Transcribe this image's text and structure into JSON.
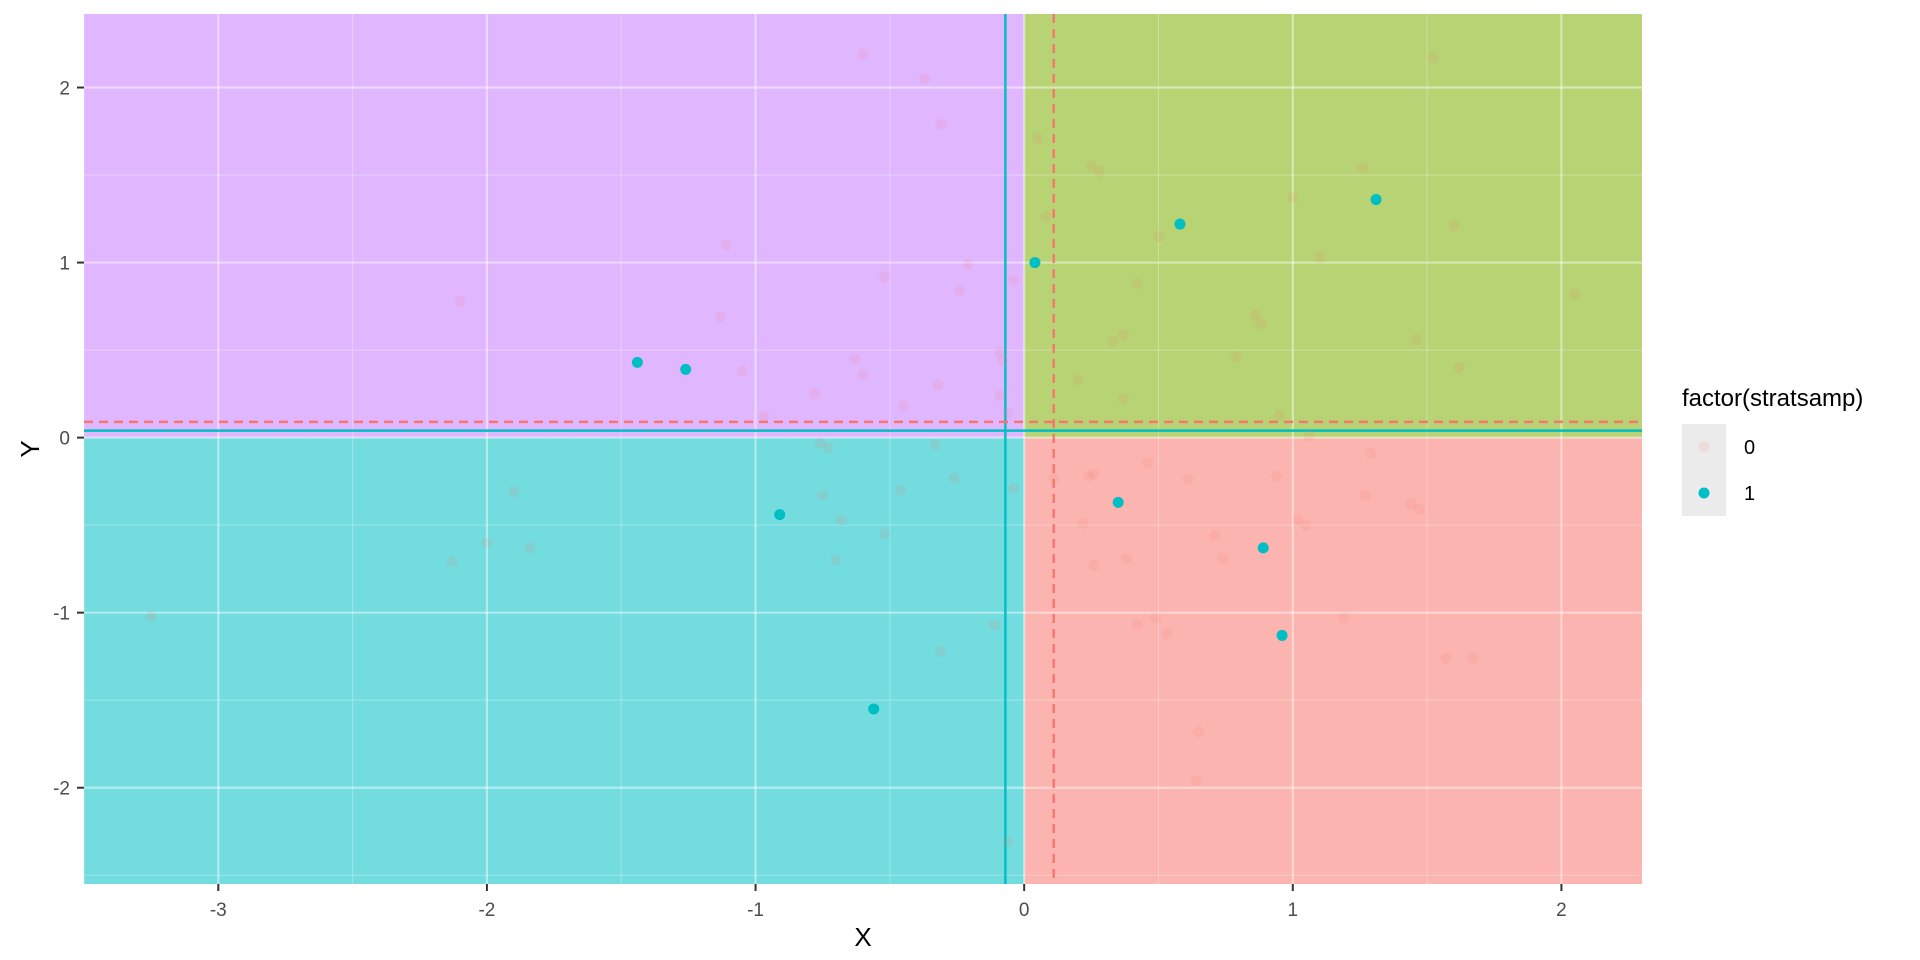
{
  "chart_data": {
    "type": "scatter",
    "xlabel": "X",
    "ylabel": "Y",
    "xlim": [
      -3.5,
      2.3
    ],
    "ylim": [
      -2.55,
      2.42
    ],
    "x_ticks": [
      -3,
      -2,
      -1,
      0,
      1,
      2
    ],
    "y_ticks": [
      -2,
      -1,
      0,
      1,
      2
    ],
    "x_tick_labels": [
      "-3",
      "-2",
      "-1",
      "0",
      "1",
      "2"
    ],
    "y_tick_labels": [
      "-2",
      "-1",
      "0",
      "1",
      "2"
    ],
    "grid": true,
    "quadrant_split": {
      "x": 0,
      "y": 0
    },
    "quadrants": [
      {
        "region": "x<0,y>0",
        "color": "#C77CFF"
      },
      {
        "region": "x>0,y>0",
        "color": "#7CAE00"
      },
      {
        "region": "x<0,y<0",
        "color": "#00BFC4"
      },
      {
        "region": "x>0,y<0",
        "color": "#F8766D"
      }
    ],
    "reference_lines": [
      {
        "orientation": "vertical",
        "value": -0.07,
        "style": "solid",
        "color": "#00BFC4"
      },
      {
        "orientation": "horizontal",
        "value": 0.04,
        "style": "solid",
        "color": "#00BFC4"
      },
      {
        "orientation": "vertical",
        "value": 0.11,
        "style": "dashed",
        "color": "#F8766D"
      },
      {
        "orientation": "horizontal",
        "value": 0.09,
        "style": "dashed",
        "color": "#F8766D"
      }
    ],
    "legend": {
      "title": "factor(stratsamp)",
      "position": "right",
      "entries": [
        {
          "label": "0",
          "color": "#F8766D",
          "faded": true
        },
        {
          "label": "1",
          "color": "#00BFC4",
          "faded": false
        }
      ]
    },
    "series": [
      {
        "name": "0",
        "color": "#F8766D",
        "opacity": 0.12,
        "points": [
          [
            -0.6,
            2.19
          ],
          [
            -0.37,
            2.05
          ],
          [
            -0.31,
            1.79
          ],
          [
            -1.11,
            1.1
          ],
          [
            -0.21,
            0.99
          ],
          [
            -2.1,
            0.78
          ],
          [
            -0.52,
            0.92
          ],
          [
            -0.24,
            0.84
          ],
          [
            -1.13,
            0.69
          ],
          [
            -0.04,
            0.9
          ],
          [
            -0.63,
            0.45
          ],
          [
            -0.6,
            0.36
          ],
          [
            -1.05,
            0.38
          ],
          [
            -0.78,
            0.25
          ],
          [
            -0.09,
            0.49
          ],
          [
            -0.08,
            0.44
          ],
          [
            -0.45,
            0.18
          ],
          [
            -0.32,
            0.3
          ],
          [
            -0.97,
            0.12
          ],
          [
            -0.09,
            0.24
          ],
          [
            -0.06,
            0.14
          ],
          [
            -0.76,
            -0.03
          ],
          [
            -0.73,
            -0.06
          ],
          [
            -0.33,
            -0.04
          ],
          [
            -0.26,
            -0.23
          ],
          [
            -0.75,
            -0.33
          ],
          [
            -0.46,
            -0.3
          ],
          [
            -0.04,
            -0.29
          ],
          [
            -1.9,
            -0.31
          ],
          [
            -0.68,
            -0.47
          ],
          [
            -0.52,
            -0.55
          ],
          [
            -2.0,
            -0.6
          ],
          [
            -1.84,
            -0.63
          ],
          [
            -0.7,
            -0.7
          ],
          [
            -2.13,
            -0.71
          ],
          [
            -3.25,
            -1.02
          ],
          [
            -0.11,
            -1.07
          ],
          [
            -0.31,
            -1.22
          ],
          [
            -0.06,
            -2.31
          ],
          [
            1.52,
            2.17
          ],
          [
            0.05,
            1.71
          ],
          [
            0.25,
            1.55
          ],
          [
            0.28,
            1.52
          ],
          [
            1.26,
            1.54
          ],
          [
            1.0,
            1.37
          ],
          [
            0.08,
            1.26
          ],
          [
            1.6,
            1.21
          ],
          [
            0.5,
            1.15
          ],
          [
            1.1,
            1.03
          ],
          [
            0.42,
            0.88
          ],
          [
            2.05,
            0.82
          ],
          [
            0.86,
            0.7
          ],
          [
            0.88,
            0.65
          ],
          [
            0.37,
            0.59
          ],
          [
            0.33,
            0.55
          ],
          [
            1.46,
            0.56
          ],
          [
            0.79,
            0.46
          ],
          [
            1.62,
            0.4
          ],
          [
            0.2,
            0.33
          ],
          [
            0.37,
            0.22
          ],
          [
            0.95,
            0.13
          ],
          [
            1.06,
            0.01
          ],
          [
            0.46,
            -0.14
          ],
          [
            1.29,
            -0.09
          ],
          [
            0.11,
            -0.23
          ],
          [
            0.26,
            -0.21
          ],
          [
            0.24,
            -0.22
          ],
          [
            0.61,
            -0.24
          ],
          [
            0.94,
            -0.22
          ],
          [
            1.27,
            -0.33
          ],
          [
            1.44,
            -0.38
          ],
          [
            1.47,
            -0.41
          ],
          [
            0.22,
            -0.49
          ],
          [
            1.02,
            -0.47
          ],
          [
            1.05,
            -0.5
          ],
          [
            0.71,
            -0.56
          ],
          [
            0.26,
            -0.73
          ],
          [
            0.38,
            -0.69
          ],
          [
            0.74,
            -0.69
          ],
          [
            1.19,
            -1.03
          ],
          [
            0.49,
            -1.03
          ],
          [
            0.42,
            -1.07
          ],
          [
            0.53,
            -1.12
          ],
          [
            1.57,
            -1.26
          ],
          [
            1.67,
            -1.26
          ],
          [
            0.65,
            -1.68
          ],
          [
            0.64,
            -1.96
          ]
        ]
      },
      {
        "name": "1",
        "color": "#00BFC4",
        "opacity": 1,
        "points": [
          [
            1.31,
            1.36
          ],
          [
            0.58,
            1.22
          ],
          [
            0.04,
            1.0
          ],
          [
            -1.44,
            0.43
          ],
          [
            -1.26,
            0.39
          ],
          [
            -0.91,
            -0.44
          ],
          [
            0.35,
            -0.37
          ],
          [
            0.89,
            -0.63
          ],
          [
            0.96,
            -1.13
          ],
          [
            -0.56,
            -1.55
          ]
        ]
      }
    ]
  }
}
